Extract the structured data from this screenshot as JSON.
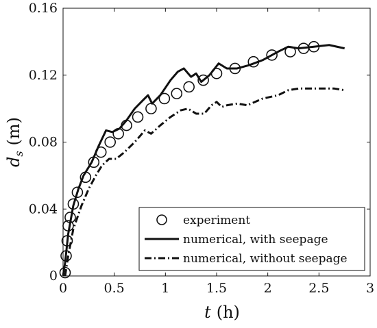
{
  "chart_data": {
    "type": "line",
    "xlabel": {
      "symbol": "t",
      "unit": "(h)"
    },
    "ylabel": {
      "symbol": "d",
      "subscript": "s",
      "unit": "(m)"
    },
    "xlim": [
      0,
      3
    ],
    "ylim": [
      0,
      0.16
    ],
    "x_ticks": [
      {
        "value": 0,
        "label": "0"
      },
      {
        "value": 0.5,
        "label": "0.5"
      },
      {
        "value": 1,
        "label": "1"
      },
      {
        "value": 1.5,
        "label": "1.5"
      },
      {
        "value": 2,
        "label": "2"
      },
      {
        "value": 2.5,
        "label": "2.5"
      },
      {
        "value": 3,
        "label": "3"
      }
    ],
    "y_ticks": [
      {
        "value": 0,
        "label": "0"
      },
      {
        "value": 0.04,
        "label": "0.04"
      },
      {
        "value": 0.08,
        "label": "0.08"
      },
      {
        "value": 0.12,
        "label": "0.12"
      },
      {
        "value": 0.16,
        "label": "0.16"
      }
    ],
    "grid": false,
    "legend_position": "bottom-right",
    "series": [
      {
        "name": "experiment",
        "style": "markers-circle",
        "color": "#111111",
        "points": [
          [
            0.02,
            0.002
          ],
          [
            0.03,
            0.012
          ],
          [
            0.04,
            0.021
          ],
          [
            0.05,
            0.03
          ],
          [
            0.07,
            0.035
          ],
          [
            0.1,
            0.043
          ],
          [
            0.14,
            0.05
          ],
          [
            0.22,
            0.059
          ],
          [
            0.3,
            0.068
          ],
          [
            0.37,
            0.074
          ],
          [
            0.46,
            0.08
          ],
          [
            0.54,
            0.085
          ],
          [
            0.62,
            0.09
          ],
          [
            0.73,
            0.095
          ],
          [
            0.86,
            0.1
          ],
          [
            0.99,
            0.106
          ],
          [
            1.11,
            0.109
          ],
          [
            1.23,
            0.113
          ],
          [
            1.37,
            0.117
          ],
          [
            1.5,
            0.121
          ],
          [
            1.68,
            0.124
          ],
          [
            1.86,
            0.128
          ],
          [
            2.04,
            0.132
          ],
          [
            2.22,
            0.134
          ],
          [
            2.35,
            0.136
          ],
          [
            2.45,
            0.137
          ]
        ]
      },
      {
        "name": "numerical, with seepage",
        "style": "solid",
        "color": "#111111",
        "points": [
          [
            0.0,
            0.0
          ],
          [
            0.02,
            0.008
          ],
          [
            0.05,
            0.025
          ],
          [
            0.1,
            0.042
          ],
          [
            0.15,
            0.052
          ],
          [
            0.2,
            0.06
          ],
          [
            0.28,
            0.068
          ],
          [
            0.35,
            0.078
          ],
          [
            0.42,
            0.087
          ],
          [
            0.48,
            0.086
          ],
          [
            0.55,
            0.088
          ],
          [
            0.62,
            0.093
          ],
          [
            0.7,
            0.1
          ],
          [
            0.78,
            0.105
          ],
          [
            0.83,
            0.108
          ],
          [
            0.87,
            0.103
          ],
          [
            0.95,
            0.108
          ],
          [
            1.05,
            0.117
          ],
          [
            1.12,
            0.122
          ],
          [
            1.18,
            0.124
          ],
          [
            1.25,
            0.119
          ],
          [
            1.3,
            0.121
          ],
          [
            1.35,
            0.116
          ],
          [
            1.43,
            0.12
          ],
          [
            1.52,
            0.127
          ],
          [
            1.6,
            0.124
          ],
          [
            1.7,
            0.124
          ],
          [
            1.82,
            0.126
          ],
          [
            1.95,
            0.129
          ],
          [
            2.1,
            0.134
          ],
          [
            2.2,
            0.137
          ],
          [
            2.3,
            0.136
          ],
          [
            2.45,
            0.137
          ],
          [
            2.6,
            0.138
          ],
          [
            2.75,
            0.136
          ]
        ]
      },
      {
        "name": "numerical, without seepage",
        "style": "dashdot",
        "color": "#111111",
        "points": [
          [
            0.02,
            0.0
          ],
          [
            0.05,
            0.012
          ],
          [
            0.1,
            0.028
          ],
          [
            0.18,
            0.042
          ],
          [
            0.25,
            0.052
          ],
          [
            0.32,
            0.06
          ],
          [
            0.38,
            0.066
          ],
          [
            0.45,
            0.07
          ],
          [
            0.52,
            0.07
          ],
          [
            0.6,
            0.074
          ],
          [
            0.7,
            0.08
          ],
          [
            0.8,
            0.087
          ],
          [
            0.86,
            0.085
          ],
          [
            0.95,
            0.09
          ],
          [
            1.05,
            0.095
          ],
          [
            1.15,
            0.099
          ],
          [
            1.22,
            0.1
          ],
          [
            1.3,
            0.097
          ],
          [
            1.38,
            0.097
          ],
          [
            1.45,
            0.102
          ],
          [
            1.5,
            0.104
          ],
          [
            1.55,
            0.101
          ],
          [
            1.6,
            0.102
          ],
          [
            1.7,
            0.103
          ],
          [
            1.8,
            0.102
          ],
          [
            1.95,
            0.106
          ],
          [
            2.1,
            0.108
          ],
          [
            2.2,
            0.111
          ],
          [
            2.3,
            0.112
          ],
          [
            2.4,
            0.112
          ],
          [
            2.55,
            0.112
          ],
          [
            2.65,
            0.112
          ],
          [
            2.75,
            0.111
          ]
        ]
      }
    ]
  }
}
